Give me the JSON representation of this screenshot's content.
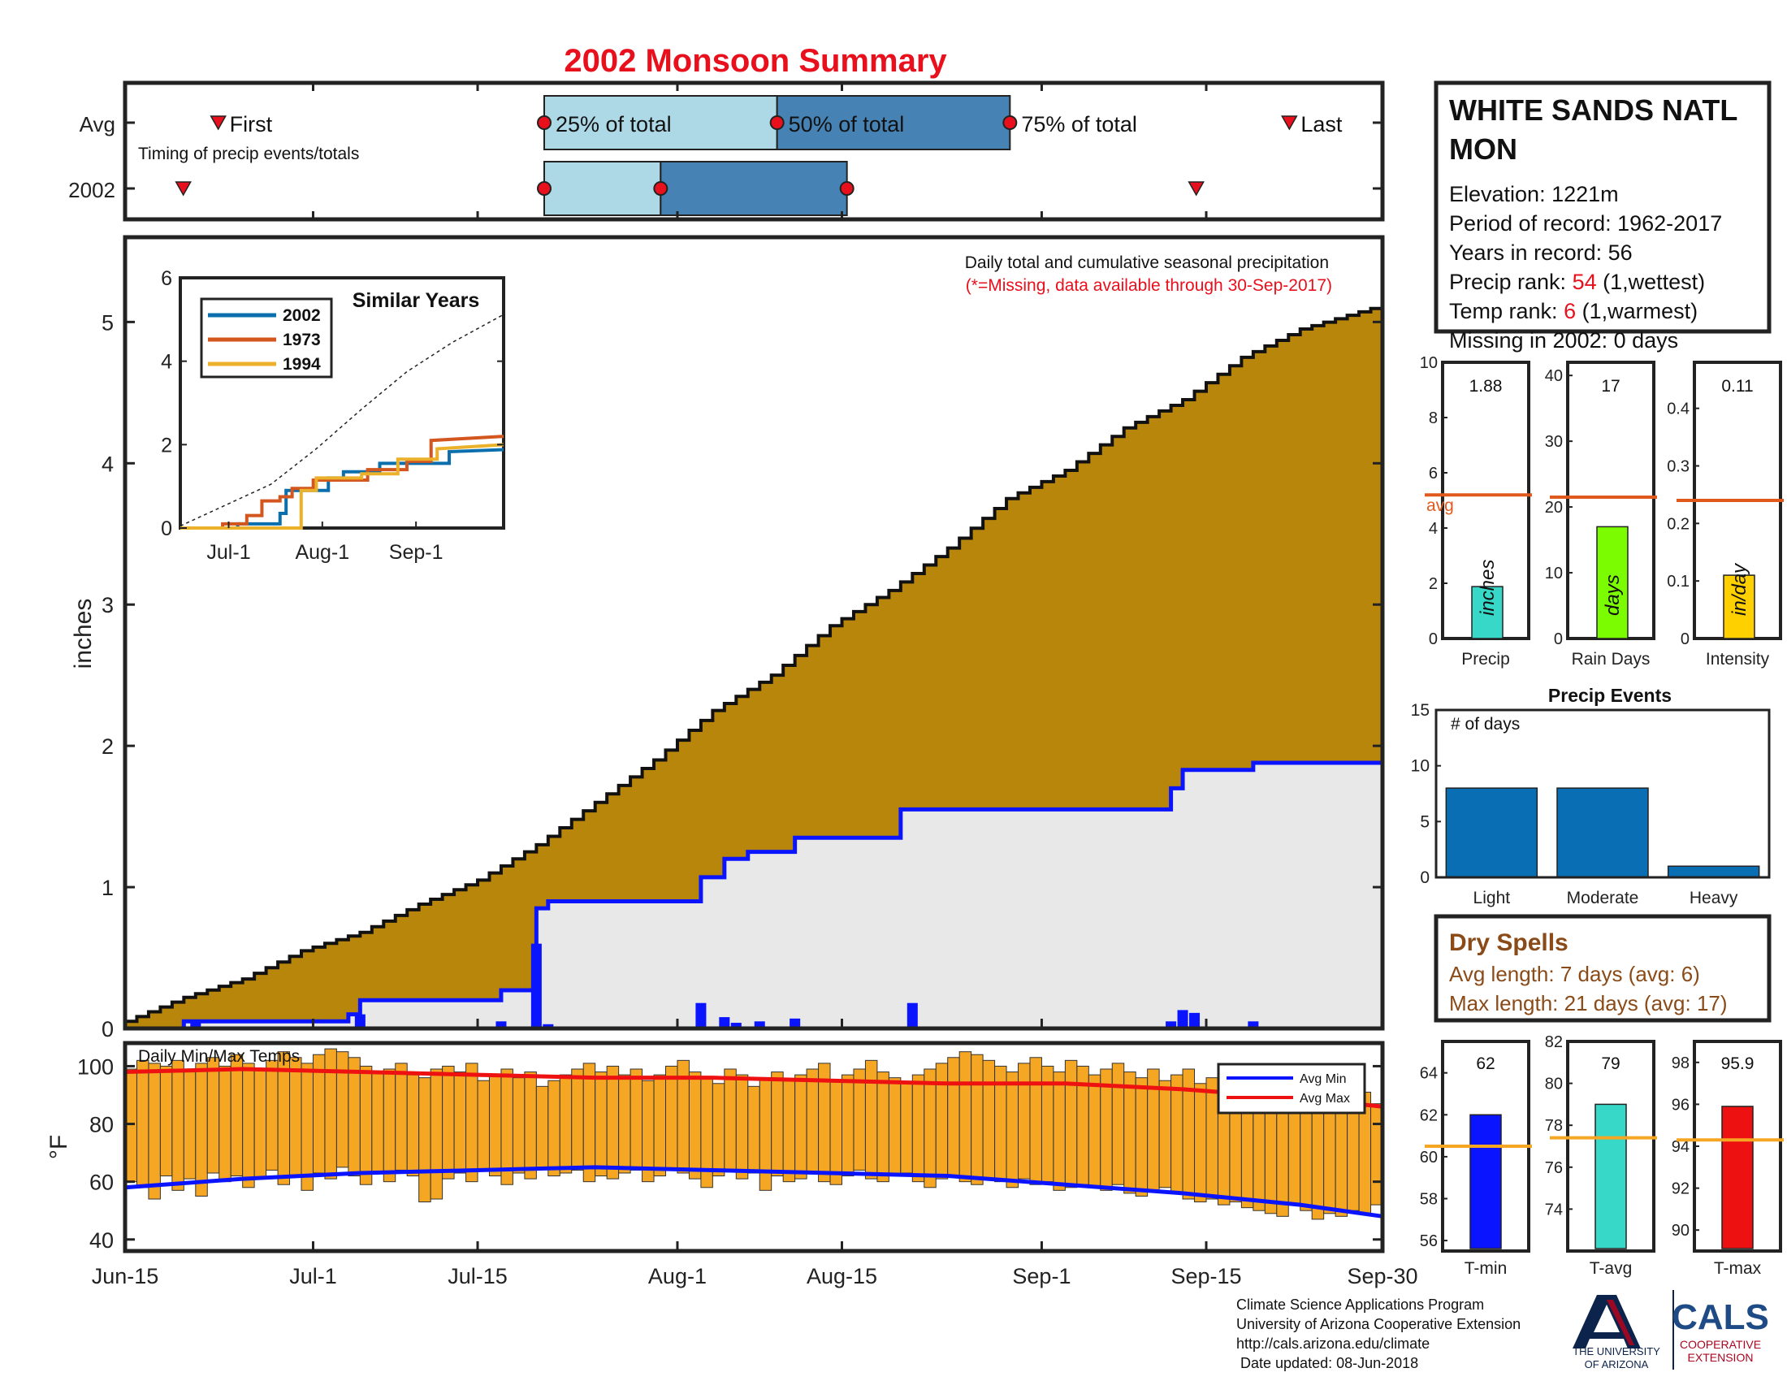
{
  "title": "2002 Monsoon Summary",
  "colors": {
    "title": "#e8101c",
    "cum_avg": "#b8860b",
    "cum_2002": "#0a14ff",
    "fill_2002": "#e9e8e8",
    "daily": "#0a14ff",
    "bars": "#f5a623",
    "avg_min": "#0a14ff",
    "avg_max": "#ee1111",
    "avgline": "#e05a1e",
    "accent_red": "#e8101c",
    "dry": "#8a4b18",
    "ua_navy": "#0c234b",
    "ua_red": "#ab0520",
    "cals": "#1e4a85"
  },
  "timing": {
    "rows": [
      "Avg",
      "2002"
    ],
    "subtitle": "Timing of precip events/totals",
    "first_label": "First",
    "last_label": "Last",
    "q_labels": [
      "25% of total",
      "50% of total",
      "75% of total"
    ],
    "avg": {
      "first": 8,
      "q25": 36,
      "q50": 56,
      "q75": 76,
      "last": 100
    },
    "y2002": {
      "first": 5,
      "q25": 36,
      "q50": 46,
      "q75": 62,
      "last": 92
    }
  },
  "station": {
    "name_line1": "WHITE SANDS NATL",
    "name_line2": "MON",
    "elevation": "Elevation: 1221m",
    "period": "Period of record: 1962-2017",
    "years": "Years in record: 56",
    "precip_rank_prefix": "Precip rank: ",
    "precip_rank_value": "54",
    "precip_rank_suffix": " (1,wettest)",
    "temp_rank_prefix": "Temp rank: ",
    "temp_rank_value": "6",
    "temp_rank_suffix": " (1,warmest)",
    "missing": "Missing in 2002: 0 days"
  },
  "main_chart": {
    "title": "Daily total and cumulative seasonal precipitation",
    "note": "(*=Missing, data available through 30-Sep-2017)",
    "ylabel": "inches",
    "ylim": [
      0,
      5.6
    ],
    "yticks": [
      0,
      1,
      2,
      3,
      4,
      5
    ],
    "xlim": [
      0,
      107
    ],
    "x_ticks": [
      {
        "day": 0,
        "label": "Jun-15"
      },
      {
        "day": 16,
        "label": "Jul-1"
      },
      {
        "day": 30,
        "label": "Jul-15"
      },
      {
        "day": 47,
        "label": "Aug-1"
      },
      {
        "day": 61,
        "label": "Aug-15"
      },
      {
        "day": 78,
        "label": "Sep-1"
      },
      {
        "day": 92,
        "label": "Sep-15"
      },
      {
        "day": 107,
        "label": "Sep-30"
      }
    ],
    "avg_cumulative": [
      [
        0,
        0.05
      ],
      [
        5,
        0.22
      ],
      [
        10,
        0.35
      ],
      [
        15,
        0.55
      ],
      [
        20,
        0.68
      ],
      [
        25,
        0.88
      ],
      [
        30,
        1.05
      ],
      [
        35,
        1.3
      ],
      [
        40,
        1.6
      ],
      [
        45,
        1.9
      ],
      [
        50,
        2.25
      ],
      [
        55,
        2.5
      ],
      [
        60,
        2.85
      ],
      [
        65,
        3.1
      ],
      [
        70,
        3.4
      ],
      [
        75,
        3.75
      ],
      [
        80,
        3.95
      ],
      [
        85,
        4.25
      ],
      [
        90,
        4.45
      ],
      [
        95,
        4.75
      ],
      [
        100,
        4.95
      ],
      [
        107,
        5.12
      ]
    ],
    "cumulative_2002": [
      [
        0,
        0
      ],
      [
        5,
        0
      ],
      [
        5,
        0.05
      ],
      [
        19,
        0.05
      ],
      [
        19,
        0.1
      ],
      [
        20,
        0.1
      ],
      [
        20,
        0.2
      ],
      [
        32,
        0.2
      ],
      [
        32,
        0.27
      ],
      [
        35,
        0.27
      ],
      [
        35,
        0.85
      ],
      [
        36,
        0.85
      ],
      [
        36,
        0.9
      ],
      [
        49,
        0.9
      ],
      [
        49,
        1.07
      ],
      [
        51,
        1.07
      ],
      [
        51,
        1.2
      ],
      [
        53,
        1.2
      ],
      [
        53,
        1.25
      ],
      [
        57,
        1.25
      ],
      [
        57,
        1.35
      ],
      [
        66,
        1.35
      ],
      [
        66,
        1.55
      ],
      [
        89,
        1.55
      ],
      [
        89,
        1.7
      ],
      [
        90,
        1.7
      ],
      [
        90,
        1.83
      ],
      [
        96,
        1.83
      ],
      [
        96,
        1.88
      ],
      [
        107,
        1.88
      ]
    ],
    "daily_2002": [
      [
        6,
        0.05
      ],
      [
        20,
        0.1
      ],
      [
        32,
        0.05
      ],
      [
        35,
        0.6
      ],
      [
        36,
        0.03
      ],
      [
        49,
        0.18
      ],
      [
        51,
        0.08
      ],
      [
        52,
        0.04
      ],
      [
        54,
        0.05
      ],
      [
        57,
        0.07
      ],
      [
        66,
        0.01
      ],
      [
        67,
        0.18
      ],
      [
        89,
        0.05
      ],
      [
        90,
        0.13
      ],
      [
        91,
        0.11
      ],
      [
        96,
        0.05
      ]
    ]
  },
  "similar_years": {
    "title": "Similar Years",
    "ylim": [
      0,
      6
    ],
    "yticks": [
      0,
      2,
      4,
      6
    ],
    "xlim": [
      0,
      107
    ],
    "x_ticks": [
      {
        "day": 16,
        "label": "Jul-1"
      },
      {
        "day": 47,
        "label": "Aug-1"
      },
      {
        "day": 78,
        "label": "Sep-1"
      }
    ],
    "series": [
      {
        "name": "2002",
        "color": "#0b6fad",
        "points": [
          [
            0,
            0
          ],
          [
            19,
            0
          ],
          [
            19,
            0.1
          ],
          [
            33,
            0.1
          ],
          [
            33,
            0.35
          ],
          [
            35,
            0.35
          ],
          [
            35,
            0.9
          ],
          [
            49,
            0.9
          ],
          [
            49,
            1.2
          ],
          [
            54,
            1.2
          ],
          [
            54,
            1.35
          ],
          [
            66,
            1.35
          ],
          [
            66,
            1.55
          ],
          [
            89,
            1.55
          ],
          [
            89,
            1.83
          ],
          [
            107,
            1.88
          ]
        ]
      },
      {
        "name": "1973",
        "color": "#d4561f",
        "points": [
          [
            0,
            0
          ],
          [
            14,
            0
          ],
          [
            14,
            0.1
          ],
          [
            22,
            0.1
          ],
          [
            22,
            0.3
          ],
          [
            27,
            0.3
          ],
          [
            27,
            0.65
          ],
          [
            33,
            0.65
          ],
          [
            33,
            0.75
          ],
          [
            37,
            0.75
          ],
          [
            37,
            0.95
          ],
          [
            44,
            0.95
          ],
          [
            44,
            1.15
          ],
          [
            62,
            1.15
          ],
          [
            62,
            1.4
          ],
          [
            75,
            1.4
          ],
          [
            75,
            1.6
          ],
          [
            83,
            1.6
          ],
          [
            83,
            2.1
          ],
          [
            107,
            2.2
          ]
        ]
      },
      {
        "name": "1994",
        "color": "#ebb12a",
        "points": [
          [
            0,
            0
          ],
          [
            40,
            0
          ],
          [
            40,
            0.9
          ],
          [
            45,
            0.9
          ],
          [
            45,
            1.2
          ],
          [
            60,
            1.2
          ],
          [
            60,
            1.3
          ],
          [
            72,
            1.3
          ],
          [
            72,
            1.65
          ],
          [
            85,
            1.65
          ],
          [
            85,
            1.9
          ],
          [
            107,
            2.0
          ]
        ]
      }
    ],
    "avg_curve": [
      [
        0,
        0.05
      ],
      [
        15,
        0.55
      ],
      [
        30,
        1.05
      ],
      [
        45,
        1.9
      ],
      [
        60,
        2.85
      ],
      [
        75,
        3.75
      ],
      [
        90,
        4.45
      ],
      [
        107,
        5.12
      ]
    ]
  },
  "small_panels": [
    {
      "label": "Precip",
      "value_text": "1.88",
      "value": 1.88,
      "avg": 5.2,
      "ymax": 10,
      "yticks": [
        0,
        2,
        4,
        6,
        8,
        10
      ],
      "unit": "inches",
      "color": "#37d8c8",
      "avg_label": "avg"
    },
    {
      "label": "Rain Days",
      "value_text": "17",
      "value": 17,
      "avg": 21.5,
      "ymax": 42,
      "yticks": [
        0,
        10,
        20,
        30,
        40
      ],
      "unit": "days",
      "color": "#7cfc00",
      "avg_label": ""
    },
    {
      "label": "Intensity",
      "value_text": "0.11",
      "value": 0.11,
      "avg": 0.24,
      "ymax": 0.48,
      "yticks": [
        0,
        0.1,
        0.2,
        0.3,
        0.4
      ],
      "unit": "in/day",
      "color": "#ffd000",
      "avg_label": ""
    }
  ],
  "precip_events": {
    "title": "Precip Events",
    "note": "# of days",
    "categories": [
      "Light",
      "Moderate",
      "Heavy"
    ],
    "values": [
      8,
      8,
      1
    ],
    "ylim": [
      0,
      15
    ],
    "yticks": [
      0,
      5,
      10,
      15
    ],
    "color": "#0a6eb4"
  },
  "dry_spells": {
    "title": "Dry Spells",
    "avg_length": "Avg length: 7 days (avg: 6)",
    "max_length": "Max length: 21 days (avg: 17)"
  },
  "temp_chart": {
    "title": "Daily Min/Max Temps",
    "ylabel": "°F",
    "ylim": [
      36,
      108
    ],
    "yticks": [
      40,
      60,
      80,
      100
    ],
    "legend": [
      "Avg Min",
      "Avg Max"
    ],
    "avg_min": [
      [
        0,
        58
      ],
      [
        10,
        61
      ],
      [
        20,
        63
      ],
      [
        30,
        64
      ],
      [
        40,
        65
      ],
      [
        50,
        64
      ],
      [
        60,
        63
      ],
      [
        70,
        62
      ],
      [
        80,
        59
      ],
      [
        90,
        56
      ],
      [
        100,
        52
      ],
      [
        107,
        48
      ]
    ],
    "avg_max": [
      [
        0,
        98
      ],
      [
        10,
        99
      ],
      [
        20,
        98
      ],
      [
        30,
        97
      ],
      [
        40,
        96
      ],
      [
        50,
        96
      ],
      [
        60,
        95
      ],
      [
        70,
        94
      ],
      [
        80,
        94
      ],
      [
        90,
        92
      ],
      [
        100,
        89
      ],
      [
        107,
        86
      ]
    ],
    "daily_max": [
      99,
      102,
      101,
      100,
      102,
      98,
      101,
      103,
      100,
      104,
      101,
      99,
      102,
      105,
      103,
      101,
      104,
      106,
      105,
      103,
      100,
      98,
      99,
      101,
      97,
      96,
      99,
      100,
      98,
      101,
      95,
      97,
      99,
      96,
      98,
      93,
      95,
      97,
      99,
      101,
      98,
      100,
      97,
      99,
      95,
      97,
      100,
      102,
      98,
      96,
      94,
      99,
      97,
      93,
      96,
      98,
      95,
      97,
      99,
      101,
      95,
      97,
      99,
      102,
      98,
      96,
      94,
      97,
      99,
      101,
      103,
      105,
      104,
      102,
      100,
      98,
      101,
      103,
      100,
      98,
      102,
      100,
      97,
      99,
      101,
      98,
      96,
      99,
      95,
      97,
      99,
      94,
      96,
      92,
      90,
      93,
      95,
      91,
      88,
      86,
      89,
      91,
      87,
      89,
      93,
      91,
      87
    ],
    "daily_min": [
      60,
      58,
      54,
      62,
      57,
      61,
      55,
      63,
      60,
      62,
      58,
      61,
      64,
      59,
      62,
      57,
      63,
      61,
      65,
      62,
      59,
      63,
      60,
      64,
      62,
      53,
      54,
      61,
      63,
      60,
      64,
      62,
      59,
      63,
      61,
      65,
      62,
      63,
      64,
      60,
      62,
      61,
      63,
      64,
      60,
      62,
      64,
      63,
      61,
      58,
      62,
      64,
      61,
      63,
      57,
      62,
      60,
      61,
      63,
      60,
      59,
      62,
      64,
      61,
      60,
      62,
      63,
      60,
      58,
      61,
      62,
      60,
      59,
      61,
      60,
      58,
      61,
      59,
      60,
      57,
      58,
      59,
      58,
      57,
      59,
      56,
      55,
      57,
      58,
      56,
      54,
      53,
      54,
      52,
      53,
      51,
      50,
      49,
      48,
      52,
      50,
      47,
      49,
      48,
      50,
      49,
      52
    ]
  },
  "temp_panels": [
    {
      "label": "T-min",
      "value_text": "62",
      "value": 62,
      "avg": 60.5,
      "ymin": 55.5,
      "ymax": 65.5,
      "yticks": [
        56,
        58,
        60,
        62,
        64
      ],
      "color": "#0a14ff"
    },
    {
      "label": "T-avg",
      "value_text": "79",
      "value": 79,
      "avg": 77.4,
      "ymin": 72,
      "ymax": 82,
      "yticks": [
        74,
        76,
        78,
        80,
        82
      ],
      "color": "#37d8c8"
    },
    {
      "label": "T-max",
      "value_text": "95.9",
      "value": 95.9,
      "avg": 94.3,
      "ymin": 89,
      "ymax": 99,
      "yticks": [
        90,
        92,
        94,
        96,
        98
      ],
      "color": "#ee1111"
    }
  ],
  "footer": {
    "line1": "Climate Science Applications Program",
    "line2": "University of Arizona Cooperative Extension",
    "line3": "http://cals.arizona.edu/climate",
    "line4": " Date updated: 08-Jun-2018"
  },
  "logos": {
    "ua_letter": "A",
    "ua_line1": "THE UNIVERSITY",
    "ua_line2": "OF ARIZONA",
    "cals": "CALS",
    "cals_line1": "COOPERATIVE",
    "cals_line2": "EXTENSION"
  }
}
